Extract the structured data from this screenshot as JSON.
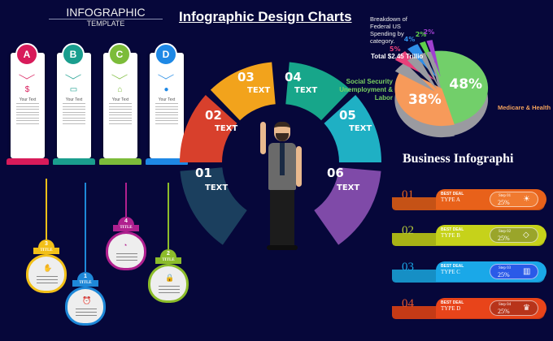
{
  "template": {
    "title": "INFOGRAPHIC",
    "subtitle": "TEMPLATE",
    "cards": [
      {
        "letter": "A",
        "color": "#d81b5a",
        "icon": "dollar-icon",
        "glyph": "$",
        "text": "Your Text"
      },
      {
        "letter": "B",
        "color": "#1a9e8e",
        "icon": "credit-card-icon",
        "glyph": "▭",
        "text": "Your Text"
      },
      {
        "letter": "C",
        "color": "#7cbc3a",
        "icon": "presentation-board-icon",
        "glyph": "⌂",
        "text": "Your Text"
      },
      {
        "letter": "D",
        "color": "#1e88e5",
        "icon": "coins-icon",
        "glyph": "●",
        "text": "Your Text"
      }
    ]
  },
  "bulbs": [
    {
      "number": "3",
      "title": "TITLE",
      "color": "#f2c018",
      "icon": "handshake-icon",
      "glyph": "✋"
    },
    {
      "number": "1",
      "title": "TITLE",
      "color": "#1e88d8",
      "icon": "alarm-clock-icon",
      "glyph": "⏰"
    },
    {
      "number": "4",
      "title": "TITLE",
      "color": "#b0208f",
      "icon": "pie-chart-icon",
      "glyph": "◔"
    },
    {
      "number": "2",
      "title": "TITLE",
      "color": "#8cbc2a",
      "icon": "lock-icon",
      "glyph": "🔒"
    }
  ],
  "wheel": {
    "title": "Infographic Design Charts",
    "segments": [
      {
        "number": "01",
        "label": "TEXT",
        "color": "#1b3f5e"
      },
      {
        "number": "02",
        "label": "TEXT",
        "color": "#d8402c"
      },
      {
        "number": "03",
        "label": "TEXT",
        "color": "#f2a31c"
      },
      {
        "number": "04",
        "label": "TEXT",
        "color": "#17a68a"
      },
      {
        "number": "05",
        "label": "TEXT",
        "color": "#1fb0c4"
      },
      {
        "number": "06",
        "label": "TEXT",
        "color": "#7f4aa8"
      }
    ]
  },
  "pie": {
    "description": "Breakdown of Federal US Spending by category.",
    "total": "Total $2.45 Trillio",
    "slices": [
      {
        "label": "Social Security Unemployment & Labor",
        "value": 48,
        "text": "48%",
        "color": "#72cf6a"
      },
      {
        "label": "Medicare & Health",
        "value": 38,
        "text": "38%",
        "color": "#f79a5a"
      },
      {
        "value": 5,
        "text": "5%",
        "color": "#e8407a"
      },
      {
        "value": 4,
        "text": "4%",
        "color": "#2f8ee8"
      },
      {
        "value": 2,
        "text": "2%",
        "color": "#5fd04a"
      },
      {
        "value": 2,
        "text": "2%",
        "color": "#a040d0"
      }
    ]
  },
  "business": {
    "title": "Business Infographi",
    "rows": [
      {
        "number": "01",
        "deal": "BEST DEAL",
        "type": "TYPE A",
        "step": "Step 01",
        "percent": "25%",
        "color": "#e8611a",
        "pill": "#f07a30",
        "numcolor": "#e8611a",
        "icon": "lightbulb-icon",
        "glyph": "☀"
      },
      {
        "number": "02",
        "deal": "BEST DEAL",
        "type": "TYPE B",
        "step": "Step 02",
        "percent": "25%",
        "color": "#c6d21a",
        "pill": "#9aa52a",
        "numcolor": "#b8cc3a",
        "icon": "puzzle-icon",
        "glyph": "◇"
      },
      {
        "number": "03",
        "deal": "BEST DEAL",
        "type": "TYPE C",
        "step": "Step 03",
        "percent": "25%",
        "color": "#1aa8e8",
        "pill": "#2a5ae8",
        "numcolor": "#1aa8e8",
        "icon": "bar-chart-icon",
        "glyph": "▥"
      },
      {
        "number": "04",
        "deal": "BEST DEAL",
        "type": "TYPE D",
        "step": "Step 04",
        "percent": "25%",
        "color": "#e8441a",
        "pill": "#b8341a",
        "numcolor": "#e8552a",
        "icon": "trophy-icon",
        "glyph": "♛"
      }
    ]
  }
}
